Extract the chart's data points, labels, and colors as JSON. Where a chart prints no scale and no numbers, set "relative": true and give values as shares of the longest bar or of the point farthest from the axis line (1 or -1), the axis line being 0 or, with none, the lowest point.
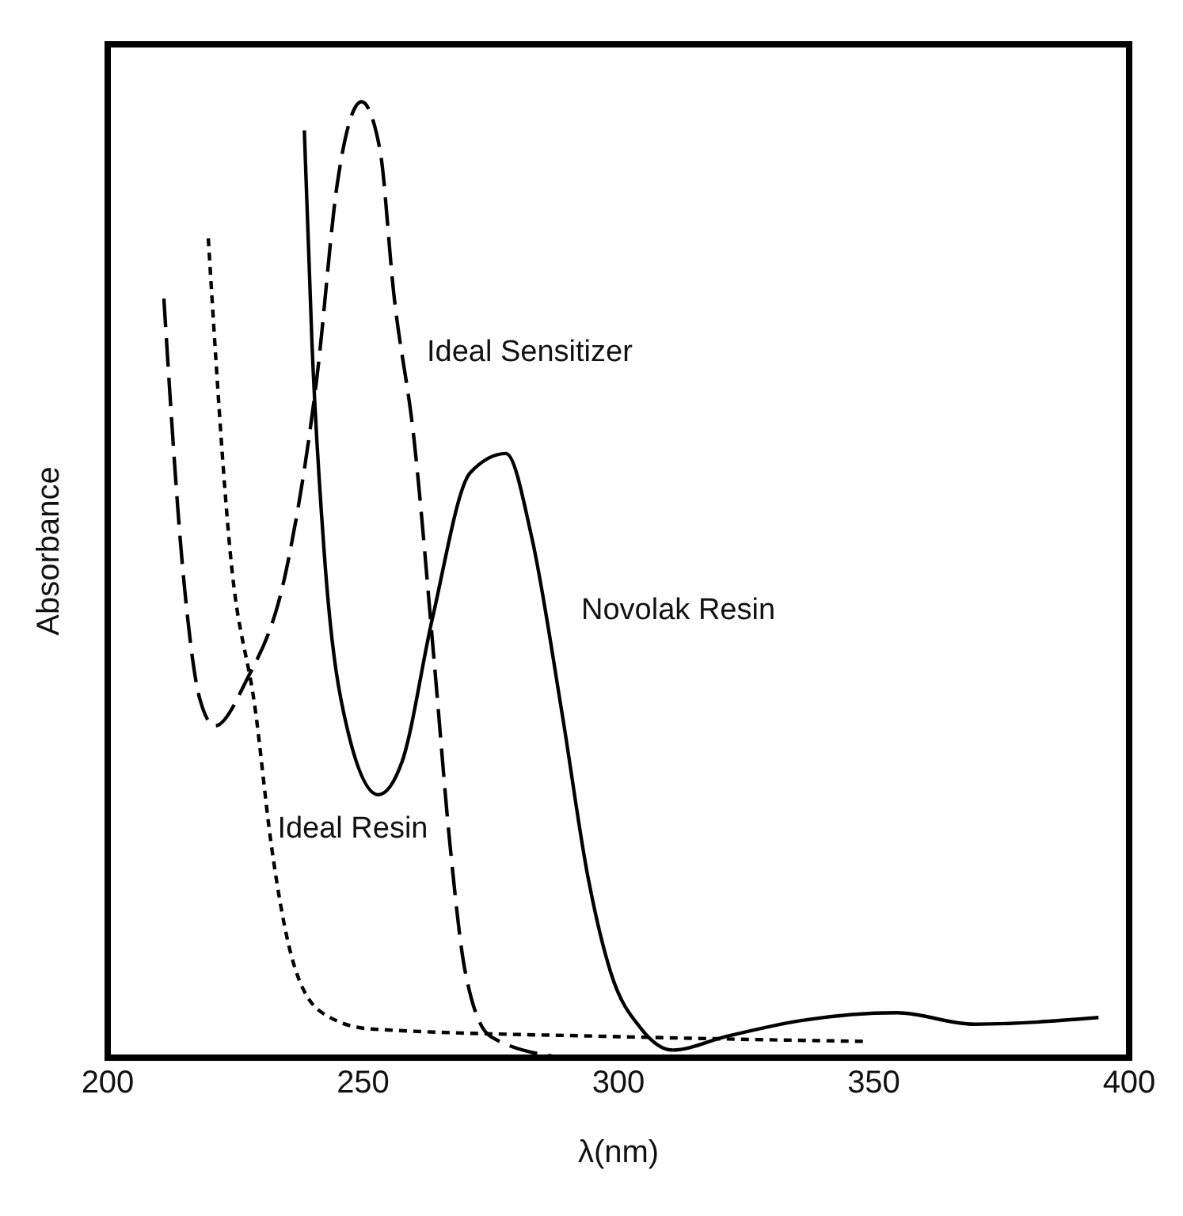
{
  "chart_data": {
    "type": "line",
    "xlabel": "λ(nm)",
    "ylabel": "Absorbance",
    "relative": true,
    "xlim": [
      200,
      400
    ],
    "xticks": [
      200,
      250,
      300,
      350,
      400
    ],
    "marker": "none",
    "series": [
      {
        "name": "Ideal Sensitizer",
        "color": "#000000",
        "line_style": "dashed",
        "x": [
          211,
          215,
          218,
          221,
          227,
          235,
          241,
          245,
          249.7,
          253.3,
          256,
          260,
          264,
          267,
          270,
          275,
          289
        ],
        "values": [
          0.794,
          0.494,
          0.376,
          0.347,
          0.393,
          0.511,
          0.713,
          0.916,
          1.0,
          0.95,
          0.8,
          0.646,
          0.41,
          0.224,
          0.09,
          0.022,
          0
        ]
      },
      {
        "name": "Novolak Resin",
        "color": "#000000",
        "line_style": "solid",
        "x": [
          238.5,
          240,
          242.4,
          247,
          253,
          257.6,
          263.6,
          271,
          278,
          283,
          289,
          294,
          298.5,
          304.5,
          310.6,
          321,
          336,
          354.5,
          369.7,
          394
        ],
        "values": [
          0.97,
          0.747,
          0.528,
          0.342,
          0.275,
          0.309,
          0.46,
          0.612,
          0.632,
          0.545,
          0.359,
          0.19,
          0.089,
          0.03,
          0.008,
          0.022,
          0.039,
          0.047,
          0.035,
          0.042
        ]
      },
      {
        "name": "Ideal Resin",
        "color": "#000000",
        "line_style": "dotted",
        "x": [
          219.7,
          224,
          229,
          232,
          236,
          242,
          251.5,
          300,
          348.5
        ],
        "values": [
          0.857,
          0.528,
          0.36,
          0.224,
          0.106,
          0.047,
          0.03,
          0.022,
          0.017
        ]
      }
    ]
  }
}
